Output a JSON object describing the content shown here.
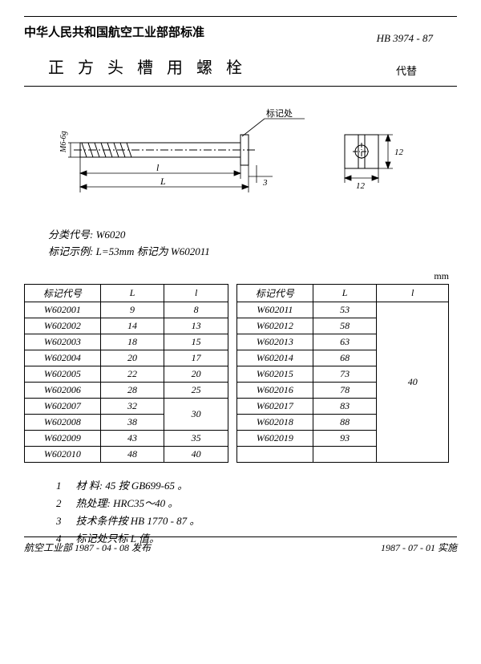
{
  "header": {
    "org": "中华人民共和国航空工业部部标准",
    "code": "HB 3974 - 87",
    "title": "正 方 头 槽 用 螺 栓",
    "replaces": "代替"
  },
  "drawing": {
    "callout": "标记处",
    "dim_thread": "M6-6g",
    "dim_l_lower": "l",
    "dim_L_upper": "L",
    "dim_3": "3",
    "dim_12v": "12",
    "dim_12h": "12"
  },
  "notes": {
    "class_code_label": "分类代号:",
    "class_code_value": "W6020",
    "example_label": "标记示例:",
    "example_text": "L=53mm  标记为  W602011"
  },
  "unit": "mm",
  "table": {
    "h_code": "标记代号",
    "h_L": "L",
    "h_l": "l"
  },
  "left_rows": [
    {
      "code": "W602001",
      "L": "9",
      "l": "8"
    },
    {
      "code": "W602002",
      "L": "14",
      "l": "13"
    },
    {
      "code": "W602003",
      "L": "18",
      "l": "15"
    },
    {
      "code": "W602004",
      "L": "20",
      "l": "17"
    },
    {
      "code": "W602005",
      "L": "22",
      "l": "20"
    },
    {
      "code": "W602006",
      "L": "28",
      "l": "25"
    },
    {
      "code": "W602007",
      "L": "32"
    },
    {
      "code": "W602008",
      "L": "38"
    },
    {
      "code": "W602009",
      "L": "43",
      "l": "35"
    },
    {
      "code": "W602010",
      "L": "48",
      "l": "40"
    }
  ],
  "left_merge_l_30": "30",
  "right_rows": [
    {
      "code": "W602011",
      "L": "53"
    },
    {
      "code": "W602012",
      "L": "58"
    },
    {
      "code": "W602013",
      "L": "63"
    },
    {
      "code": "W602014",
      "L": "68"
    },
    {
      "code": "W602015",
      "L": "73"
    },
    {
      "code": "W602016",
      "L": "78"
    },
    {
      "code": "W602017",
      "L": "83"
    },
    {
      "code": "W602018",
      "L": "88"
    },
    {
      "code": "W602019",
      "L": "93"
    }
  ],
  "right_merge_l_40": "40",
  "footnotes": {
    "f1n": "1",
    "f1": "材  料: 45  按 GB699-65 。",
    "f2n": "2",
    "f2": "热处理: HRC35～40 。",
    "f3n": "3",
    "f3": "技术条件按 HB 1770 - 87  。",
    "f4n": "4",
    "f4": "标记处只标 L 值。"
  },
  "footer": {
    "left": "航空工业部  1987 - 04 - 08   发布",
    "right": "1987 - 07 - 01   实施"
  }
}
